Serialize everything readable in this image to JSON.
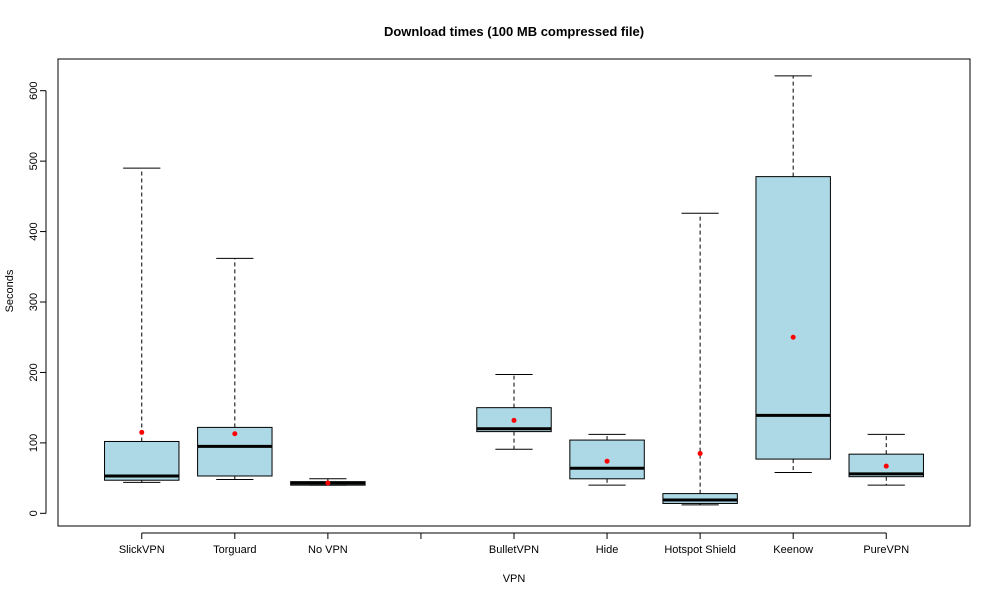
{
  "chart_data": {
    "type": "boxplot",
    "title": "Download times (100 MB compressed file)",
    "xlabel": "VPN",
    "ylabel": "Seconds",
    "ylim": [
      -18,
      645
    ],
    "y_ticks": [
      0,
      100,
      200,
      300,
      400,
      500,
      600
    ],
    "box_fill": "#add8e6",
    "mean_color": "#ff0000",
    "categories": [
      "SlickVPN",
      "Torguard",
      "No VPN",
      "",
      "BulletVPN",
      "Hide",
      "Hotspot Shield",
      "Keenow",
      "PureVPN"
    ],
    "boxes": [
      {
        "name": "SlickVPN",
        "min": 44,
        "q1": 47,
        "median": 53,
        "q3": 102,
        "max": 490,
        "mean": 115
      },
      {
        "name": "Torguard",
        "min": 48,
        "q1": 53,
        "median": 95,
        "q3": 122,
        "max": 362,
        "mean": 113
      },
      {
        "name": "No VPN",
        "min": 40,
        "q1": 40,
        "median": 43,
        "q3": 45,
        "max": 49,
        "mean": 43
      },
      null,
      {
        "name": "BulletVPN",
        "min": 91,
        "q1": 116,
        "median": 120,
        "q3": 150,
        "max": 197,
        "mean": 132
      },
      {
        "name": "Hide",
        "min": 40,
        "q1": 49,
        "median": 64,
        "q3": 104,
        "max": 112,
        "mean": 74
      },
      {
        "name": "Hotspot Shield",
        "min": 12,
        "q1": 14,
        "median": 19,
        "q3": 28,
        "max": 426,
        "mean": 85
      },
      {
        "name": "Keenow",
        "min": 58,
        "q1": 77,
        "median": 139,
        "q3": 478,
        "max": 621,
        "mean": 250
      },
      {
        "name": "PureVPN",
        "min": 40,
        "q1": 52,
        "median": 56,
        "q3": 84,
        "max": 112,
        "mean": 67
      }
    ]
  }
}
